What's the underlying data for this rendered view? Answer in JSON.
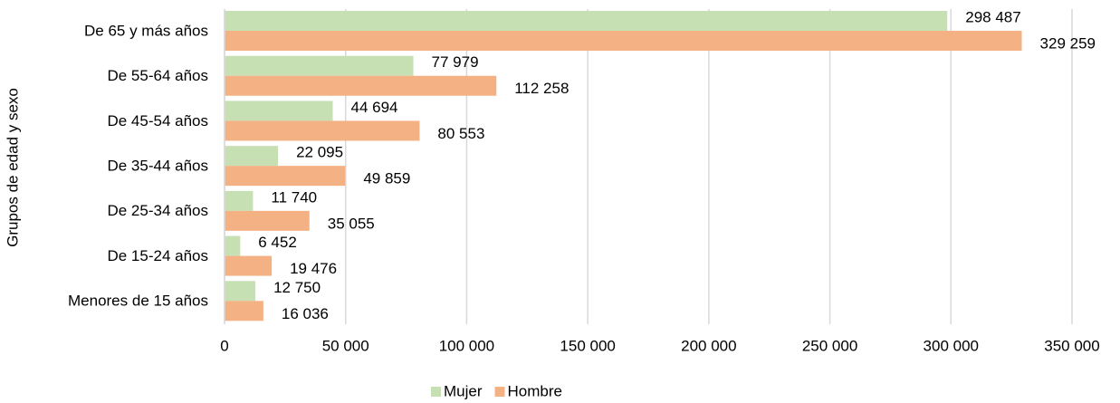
{
  "chart_data": {
    "type": "barh",
    "ylabel": "Grupos de edad y sexo",
    "categories": [
      "De 65 y más años",
      "De 55-64 años",
      "De 45-54 años",
      "De 35-44 años",
      "De 25-34 años",
      "De 15-24 años",
      "Menores de 15 años"
    ],
    "series": [
      {
        "name": "Mujer",
        "color": "#c6e0b4",
        "values": [
          298487,
          77979,
          44694,
          22095,
          11740,
          6452,
          12750
        ],
        "value_labels": [
          "298 487",
          "77 979",
          "44 694",
          "22 095",
          "11 740",
          "6 452",
          "12 750"
        ]
      },
      {
        "name": "Hombre",
        "color": "#f4b183",
        "values": [
          329259,
          112258,
          80553,
          49859,
          35055,
          19476,
          16036
        ],
        "value_labels": [
          "329 259",
          "112 258",
          "80 553",
          "49 859",
          "35 055",
          "19 476",
          "16 036"
        ]
      }
    ],
    "xlim": [
      0,
      350000
    ],
    "xticks": [
      0,
      {
        "value": 50000,
        "label": "50 000"
      },
      {
        "value": 100000,
        "label": "100 000"
      },
      {
        "value": 150000,
        "label": "150 000"
      },
      {
        "value": 200000,
        "label": "200 000"
      },
      {
        "value": 250000,
        "label": "250 000"
      },
      {
        "value": 300000,
        "label": "300 000"
      },
      {
        "value": 350000,
        "label": "350 000"
      }
    ],
    "grid": true,
    "legend": "bottom"
  }
}
